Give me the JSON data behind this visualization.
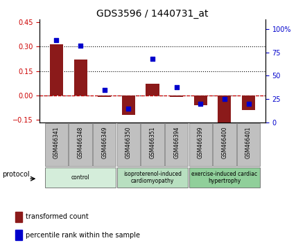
{
  "title": "GDS3596 / 1440731_at",
  "categories": [
    "GSM466341",
    "GSM466348",
    "GSM466349",
    "GSM466350",
    "GSM466351",
    "GSM466394",
    "GSM466399",
    "GSM466400",
    "GSM466401"
  ],
  "transformed_count": [
    0.312,
    0.22,
    -0.008,
    -0.12,
    0.072,
    -0.008,
    -0.06,
    -0.185,
    -0.09
  ],
  "percentile_rank": [
    88,
    82,
    35,
    15,
    68,
    38,
    20,
    25,
    20
  ],
  "bar_color": "#8B1A1A",
  "dot_color": "#0000CC",
  "ylim_left": [
    -0.165,
    0.465
  ],
  "ylim_right": [
    0,
    110
  ],
  "yticks_left": [
    -0.15,
    0.0,
    0.15,
    0.3,
    0.45
  ],
  "yticks_right": [
    0,
    25,
    50,
    75,
    100
  ],
  "hlines_dotted": [
    0.15,
    0.3
  ],
  "groups": [
    {
      "label": "control",
      "start": 0,
      "end": 3,
      "color": "#d4edda"
    },
    {
      "label": "isoproterenol-induced\ncardiomyopathy",
      "start": 3,
      "end": 6,
      "color": "#b8dfc0"
    },
    {
      "label": "exercise-induced cardiac\nhypertrophy",
      "start": 6,
      "end": 9,
      "color": "#90cf9a"
    }
  ],
  "legend_items": [
    {
      "label": "transformed count",
      "color": "#8B1A1A"
    },
    {
      "label": "percentile rank within the sample",
      "color": "#0000CC"
    }
  ],
  "protocol_label": "protocol",
  "background_color": "#ffffff",
  "tick_label_color_left": "#cc0000",
  "tick_label_color_right": "#0000cc",
  "label_box_color": "#c0c0c0",
  "label_box_edge": "#888888"
}
